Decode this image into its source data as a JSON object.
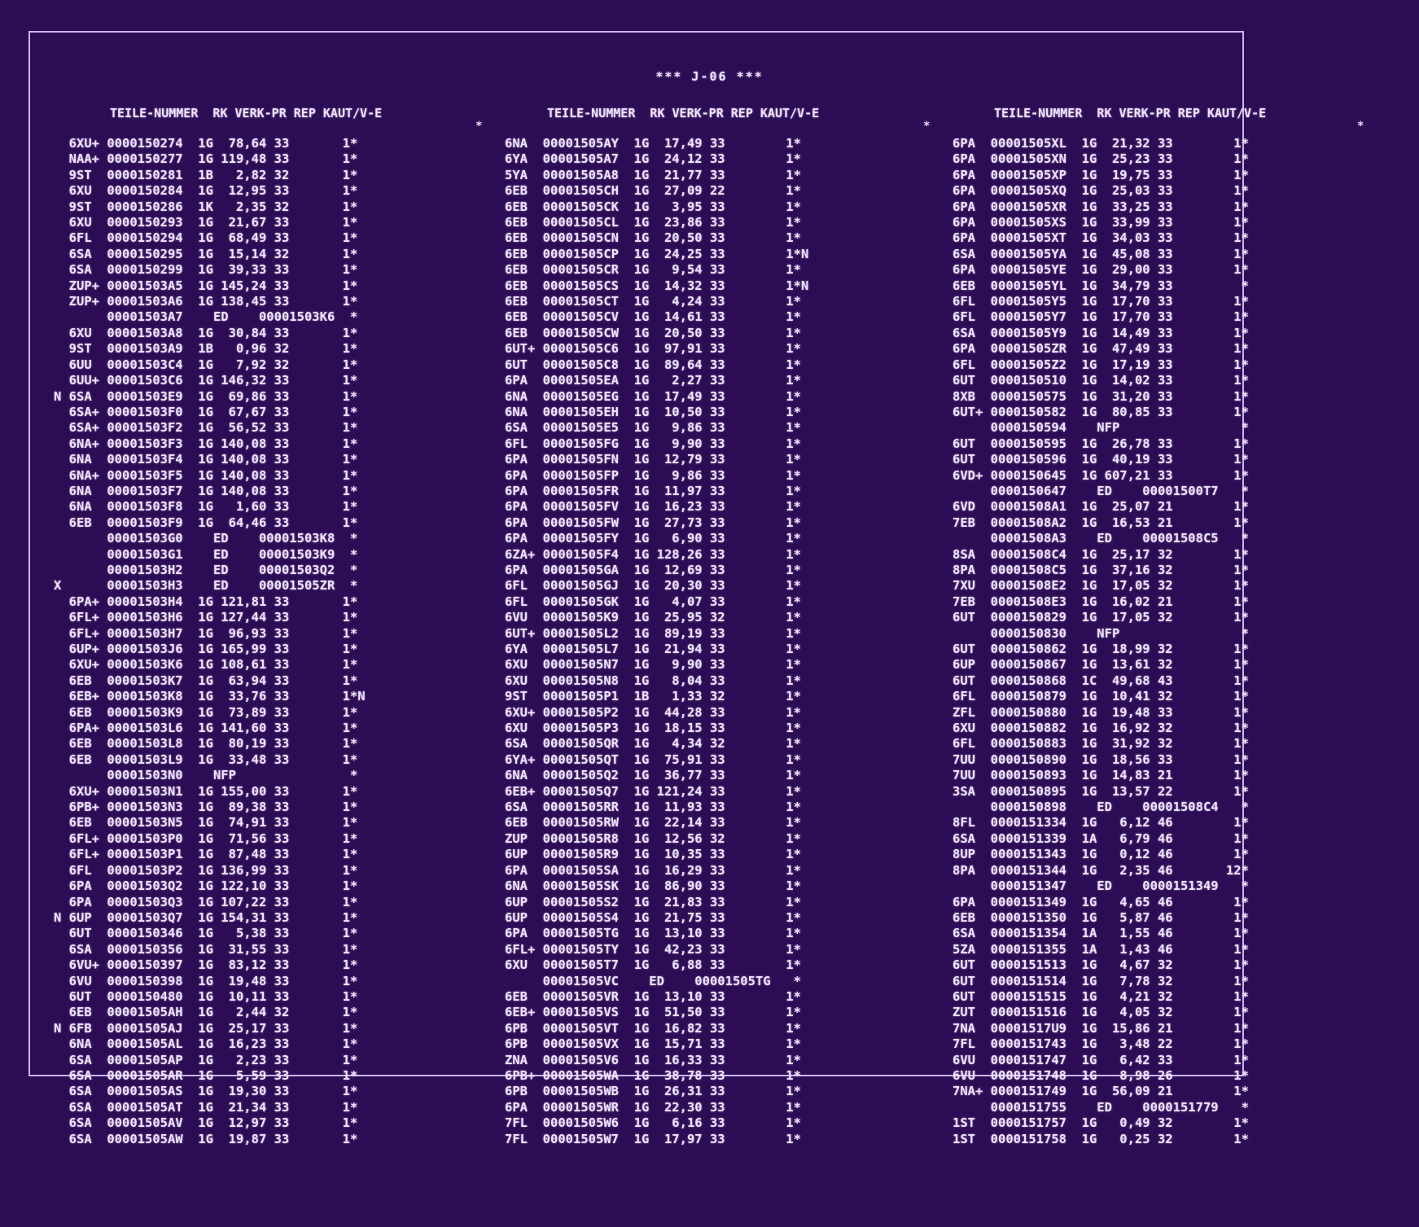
{
  "title": "*** J-06 ***",
  "header": "TEILE-NUMMER  RK VERK-PR REP KAUT/V-E",
  "header_star": "*",
  "columns": [
    {
      "lines": [
        "  6XU+ 0000150274  1G  78,64 33       1*",
        "  NAA+ 0000150277  1G 119,48 33       1*",
        "  9ST  0000150281  1B   2,82 32       1*",
        "  6XU  0000150284  1G  12,95 33       1*",
        "  9ST  0000150286  1K   2,35 32       1*",
        "  6XU  0000150293  1G  21,67 33       1*",
        "  6FL  0000150294  1G  68,49 33       1*",
        "  6SA  0000150295  1G  15,14 32       1*",
        "  6SA  0000150299  1G  39,33 33       1*",
        "  ZUP+ 00001503A5  1G 145,24 33       1*",
        "  ZUP+ 00001503A6  1G 138,45 33       1*",
        "       00001503A7    ED    00001503K6  *",
        "  6XU  00001503A8  1G  30,84 33       1*",
        "  9ST  00001503A9  1B   0,96 32       1*",
        "  6UU  00001503C4  1G   7,92 32       1*",
        "  6UU+ 00001503C6  1G 146,32 33       1*",
        "N 6SA  00001503E9  1G  69,86 33       1*",
        "  6SA+ 00001503F0  1G  67,67 33       1*",
        "  6SA+ 00001503F2  1G  56,52 33       1*",
        "  6NA+ 00001503F3  1G 140,08 33       1*",
        "  6NA  00001503F4  1G 140,08 33       1*",
        "  6NA+ 00001503F5  1G 140,08 33       1*",
        "  6NA  00001503F7  1G 140,08 33       1*",
        "  6NA  00001503F8  1G   1,60 33       1*",
        "  6EB  00001503F9  1G  64,46 33       1*",
        "       00001503G0    ED    00001503K8  *",
        "       00001503G1    ED    00001503K9  *",
        "       00001503H2    ED    00001503Q2  *",
        "X      00001503H3    ED    00001505ZR  *",
        "  6PA+ 00001503H4  1G 121,81 33       1*",
        "  6FL+ 00001503H6  1G 127,44 33       1*",
        "  6FL+ 00001503H7  1G  96,93 33       1*",
        "  6UP+ 00001503J6  1G 165,99 33       1*",
        "  6XU+ 00001503K6  1G 108,61 33       1*",
        "  6EB  00001503K7  1G  63,94 33       1*",
        "  6EB+ 00001503K8  1G  33,76 33       1*N",
        "  6EB  00001503K9  1G  73,89 33       1*",
        "  6PA+ 00001503L6  1G 141,60 33       1*",
        "  6EB  00001503L8  1G  80,19 33       1*",
        "  6EB  00001503L9  1G  33,48 33       1*",
        "       00001503N0    NFP               *",
        "  6XU+ 00001503N1  1G 155,00 33       1*",
        "  6PB+ 00001503N3  1G  89,38 33       1*",
        "  6EB  00001503N5  1G  74,91 33       1*",
        "  6FL+ 00001503P0  1G  71,56 33       1*",
        "  6FL+ 00001503P1  1G  87,48 33       1*",
        "  6FL  00001503P2  1G 136,99 33       1*",
        "  6PA  00001503Q2  1G 122,10 33       1*",
        "  6PA  00001503Q3  1G 107,22 33       1*",
        "N 6UP  00001503Q7  1G 154,31 33       1*",
        "  6UT  0000150346  1G   5,38 33       1*",
        "  6SA  0000150356  1G  31,55 33       1*",
        "  6VU+ 0000150397  1G  83,12 33       1*",
        "  6VU  0000150398  1G  19,48 33       1*",
        "  6UT  0000150480  1G  10,11 33       1*",
        "  6EB  00001505AH  1G   2,44 32       1*",
        "N 6FB  00001505AJ  1G  25,17 33       1*",
        "  6NA  00001505AL  1G  16,23 33       1*",
        "  6SA  00001505AP  1G   2,23 33       1*",
        "  6SA  00001505AR  1G   5,59 33       1*",
        "  6SA  00001505AS  1G  19,30 33       1*",
        "  6SA  00001505AT  1G  21,34 33       1*",
        "  6SA  00001505AV  1G  12,97 33       1*",
        "  6SA  00001505AW  1G  19,87 33       1*"
      ]
    },
    {
      "lines": [
        "6NA  00001505AY  1G  17,49 33        1*",
        "6YA  00001505A7  1G  24,12 33        1*",
        "5YA  00001505A8  1G  21,77 33        1*",
        "6EB  00001505CH  1G  27,09 22        1*",
        "6EB  00001505CK  1G   3,95 33        1*",
        "6EB  00001505CL  1G  23,86 33        1*",
        "6EB  00001505CN  1G  20,50 33        1*",
        "6EB  00001505CP  1G  24,25 33        1*N",
        "6EB  00001505CR  1G   9,54 33        1*",
        "6EB  00001505CS  1G  14,32 33        1*N",
        "6EB  00001505CT  1G   4,24 33        1*",
        "6EB  00001505CV  1G  14,61 33        1*",
        "6EB  00001505CW  1G  20,50 33        1*",
        "6UT+ 00001505C6  1G  97,91 33        1*",
        "6UT  00001505C8  1G  89,64 33        1*",
        "6PA  00001505EA  1G   2,27 33        1*",
        "6NA  00001505EG  1G  17,49 33        1*",
        "6NA  00001505EH  1G  10,50 33        1*",
        "6SA  00001505E5  1G   9,86 33        1*",
        "6FL  00001505FG  1G   9,90 33        1*",
        "6PA  00001505FN  1G  12,79 33        1*",
        "6PA  00001505FP  1G   9,86 33        1*",
        "6PA  00001505FR  1G  11,97 33        1*",
        "6PA  00001505FV  1G  16,23 33        1*",
        "6PA  00001505FW  1G  27,73 33        1*",
        "6PA  00001505FY  1G   6,90 33        1*",
        "6ZA+ 00001505F4  1G 128,26 33        1*",
        "6PA  00001505GA  1G  12,69 33        1*",
        "6FL  00001505GJ  1G  20,30 33        1*",
        "6FL  00001505GK  1G   4,07 33        1*",
        "6VU  00001505K9  1G  25,95 32        1*",
        "6UT+ 00001505L2  1G  89,19 33        1*",
        "6YA  00001505L7  1G  21,94 33        1*",
        "6XU  00001505N7  1G   9,90 33        1*",
        "6XU  00001505N8  1G   8,04 33        1*",
        "9ST  00001505P1  1B   1,33 32        1*",
        "6XU+ 00001505P2  1G  44,28 33        1*",
        "6XU  00001505P3  1G  18,15 33        1*",
        "6SA  00001505QR  1G   4,34 32        1*",
        "6YA+ 00001505QT  1G  75,91 33        1*",
        "6NA  00001505Q2  1G  36,77 33        1*",
        "6EB+ 00001505Q7  1G 121,24 33        1*",
        "6SA  00001505RR  1G  11,93 33        1*",
        "6EB  00001505RW  1G  22,14 33        1*",
        "ZUP  00001505R8  1G  12,56 32        1*",
        "6UP  00001505R9  1G  10,35 33        1*",
        "6PA  00001505SA  1G  16,29 33        1*",
        "6NA  00001505SK  1G  86,90 33        1*",
        "6UP  00001505S2  1G  21,83 33        1*",
        "6UP  00001505S4  1G  21,75 33        1*",
        "6PA  00001505TG  1G  13,10 33        1*",
        "6FL+ 00001505TY  1G  42,23 33        1*",
        "6XU  00001505T7  1G   6,88 33        1*",
        "     00001505VC    ED    00001505TG   *",
        "6EB  00001505VR  1G  13,10 33        1*",
        "6EB+ 00001505VS  1G  51,50 33        1*",
        "6PB  00001505VT  1G  16,82 33        1*",
        "6PB  00001505VX  1G  15,71 33        1*",
        "ZNA  00001505V6  1G  16,33 33        1*",
        "6PB+ 00001505WA  1G  38,78 33        1*",
        "6PB  00001505WB  1G  26,31 33        1*",
        "6PA  00001505WR  1G  22,30 33        1*",
        "7FL  00001505W6  1G   6,16 33        1*",
        "7FL  00001505W7  1G  17,97 33        1*"
      ]
    },
    {
      "lines": [
        "6PA  00001505XL  1G  21,32 33        1*",
        "6PA  00001505XN  1G  25,23 33        1*",
        "6PA  00001505XP  1G  19,75 33        1*",
        "6PA  00001505XQ  1G  25,03 33        1*",
        "6PA  00001505XR  1G  33,25 33        1*",
        "6PA  00001505XS  1G  33,99 33        1*",
        "6PA  00001505XT  1G  34,03 33        1*",
        "6SA  00001505YA  1G  45,08 33        1*",
        "6PA  00001505YE  1G  29,00 33        1*",
        "6EB  00001505YL  1G  34,79 33         *",
        "6FL  00001505Y5  1G  17,70 33        1*",
        "6FL  00001505Y7  1G  17,70 33        1*",
        "6SA  00001505Y9  1G  14,49 33        1*",
        "6PA  00001505ZR  1G  47,49 33        1*",
        "6FL  00001505Z2  1G  17,19 33        1*",
        "6UT  0000150510  1G  14,02 33        1*",
        "8XB  0000150575  1G  31,20 33        1*",
        "6UT+ 0000150582  1G  80,85 33        1*",
        "     0000150594    NFP                *",
        "6UT  0000150595  1G  26,78 33        1*",
        "6UT  0000150596  1G  40,19 33        1*",
        "6VD+ 0000150645  1G 607,21 33        1*",
        "     0000150647    ED    00001500T7   *",
        "6VD  00001508A1  1G  25,07 21        1*",
        "7EB  00001508A2  1G  16,53 21        1*",
        "     00001508A3    ED    00001508C5   *",
        "8SA  00001508C4  1G  25,17 32        1*",
        "8PA  00001508C5  1G  37,16 32        1*",
        "7XU  00001508E2  1G  17,05 32        1*",
        "7EB  00001508E3  1G  16,02 21        1*",
        "6UT  0000150829  1G  17,05 32        1*",
        "     0000150830    NFP                *",
        "6UT  0000150862  1G  18,99 32        1*",
        "6UP  0000150867  1G  13,61 32        1*",
        "6UT  0000150868  1C  49,68 43        1*",
        "6FL  0000150879  1G  10,41 32        1*",
        "ZFL  0000150880  1G  19,48 33        1*",
        "6XU  0000150882  1G  16,92 32        1*",
        "6FL  0000150883  1G  31,92 32        1*",
        "7UU  0000150890  1G  18,56 33        1*",
        "7UU  0000150893  1G  14,83 21        1*",
        "3SA  0000150895  1G  13,57 22        1*",
        "     0000150898    ED    00001508C4   *",
        "8FL  0000151334  1G   6,12 46        1*",
        "6SA  0000151339  1A   6,79 46        1*",
        "8UP  0000151343  1G   0,12 46        1*",
        "8PA  0000151344  1G   2,35 46       12*",
        "     0000151347    ED    0000151349   *",
        "6PA  0000151349  1G   4,65 46        1*",
        "6EB  0000151350  1G   5,87 46        1*",
        "6SA  0000151354  1A   1,55 46        1*",
        "5ZA  0000151355  1A   1,43 46        1*",
        "6UT  0000151513  1G   4,67 32        1*",
        "6UT  0000151514  1G   7,78 32        1*",
        "6UT  0000151515  1G   4,21 32        1*",
        "ZUT  0000151516  1G   4,05 32        1*",
        "7NA  00001517U9  1G  15,86 21        1*",
        "7FL  0000151743  1G   3,48 22        1*",
        "6VU  0000151747  1G   6,42 33        1*",
        "6VU  0000151748  1G   8,98 26        1*",
        "7NA+ 0000151749  1G  56,09 21        1*",
        "     0000151755    ED    0000151779   *",
        "1ST  0000151757  1G   0,49 32        1*",
        "1ST  0000151758  1G   0,25 32        1*"
      ]
    }
  ]
}
